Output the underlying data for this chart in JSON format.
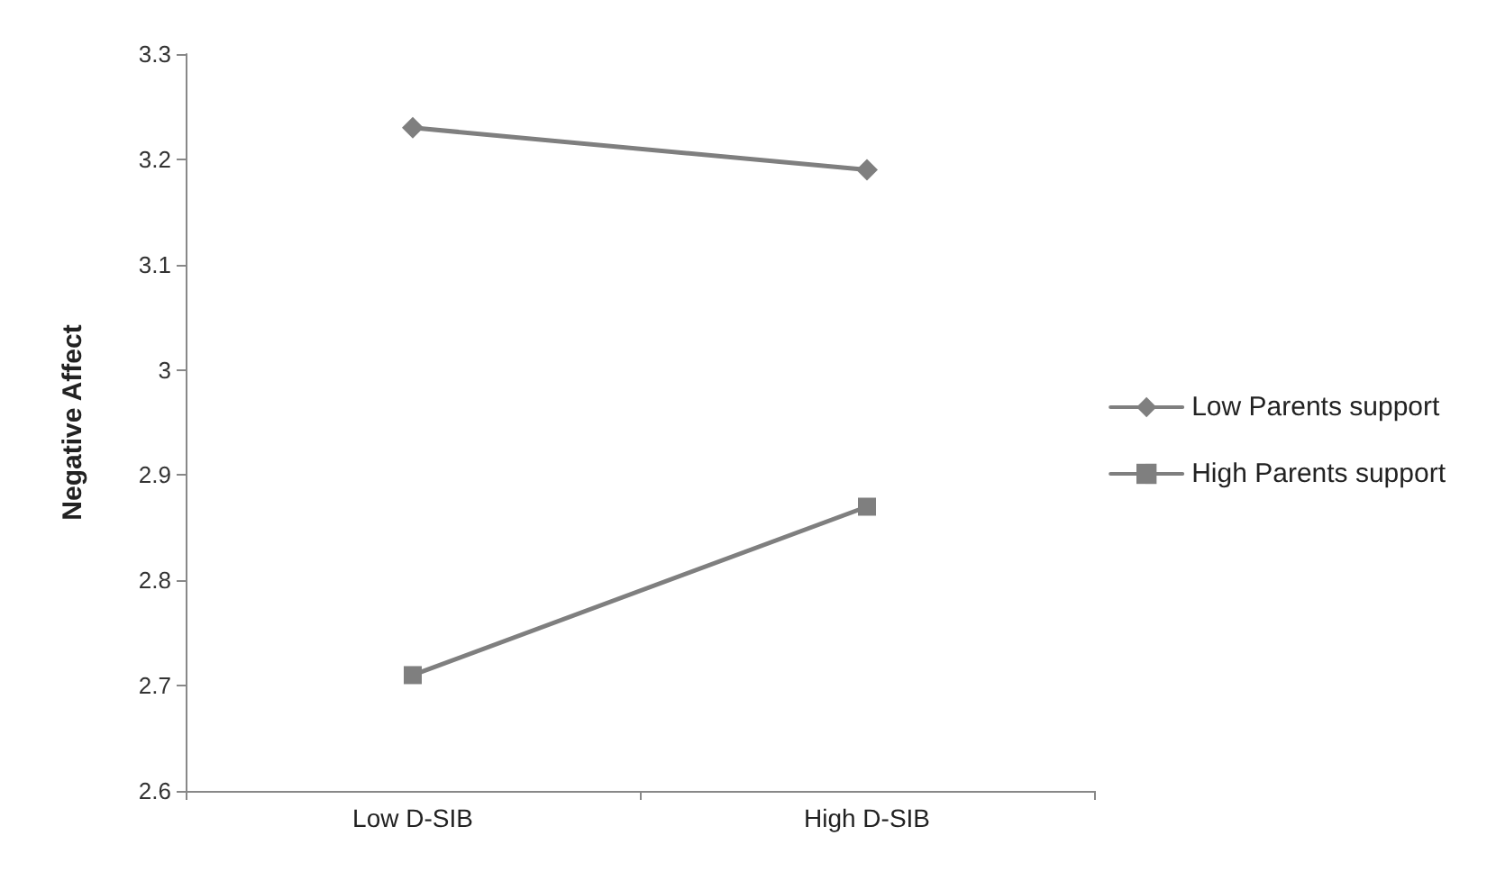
{
  "chart_data": {
    "type": "line",
    "ylabel": "Negative Affect",
    "categories": [
      "Low D-SIB",
      "High D-SIB"
    ],
    "series": [
      {
        "name": "Low Parents support",
        "color": "#7f7f7f",
        "values": [
          3.23,
          3.19
        ],
        "marker": "diamond"
      },
      {
        "name": "High Parents support",
        "color": "#7f7f7f",
        "values": [
          2.71,
          2.87
        ],
        "marker": "square"
      }
    ],
    "ylim": [
      2.6,
      3.3
    ],
    "yticks": [
      2.6,
      2.7,
      2.8,
      2.9,
      3,
      3.1,
      3.2,
      3.3
    ],
    "grid": false,
    "legend": "right",
    "line_style": "solid"
  }
}
